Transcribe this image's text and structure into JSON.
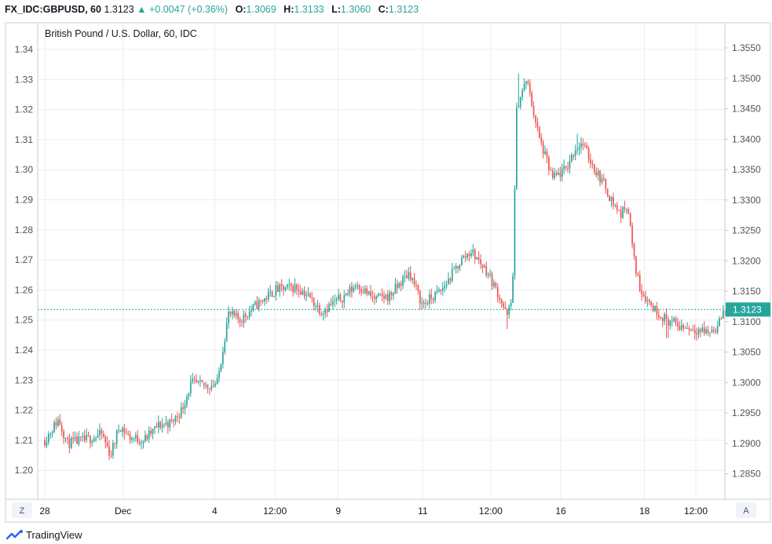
{
  "header": {
    "symbol": "FX_IDC:GBPUSD, 60",
    "last": "1.3123",
    "change": "▲ +0.0047 (+0.36%)",
    "o_label": "O:",
    "o_value": "1.3069",
    "h_label": "H:",
    "h_value": "1.3133",
    "l_label": "L:",
    "l_value": "1.3060",
    "c_label": "C:",
    "c_value": "1.3123"
  },
  "chart_data": {
    "type": "candlestick",
    "title": "British Pound / U.S. Dollar, 60, IDC",
    "left_axis": {
      "range": [
        1.195,
        1.3445
      ],
      "ticks": [
        "1.34",
        "1.33",
        "1.32",
        "1.31",
        "1.30",
        "1.29",
        "1.28",
        "1.27",
        "1.26",
        "1.25",
        "1.24",
        "1.23",
        "1.22",
        "1.21",
        "1.20"
      ]
    },
    "right_axis": {
      "range": [
        1.2819,
        1.3619
      ],
      "ticks": [
        "1.3550",
        "1.3500",
        "1.3450",
        "1.3400",
        "1.3350",
        "1.3300",
        "1.3250",
        "1.3200",
        "1.3150",
        "1.3100",
        "1.3050",
        "1.3000",
        "1.2950",
        "1.2900",
        "1.2850"
      ]
    },
    "x_ticks": [
      {
        "label": "28",
        "pos": 0.0
      },
      {
        "label": "Dec",
        "pos": 0.1202
      },
      {
        "label": "4",
        "pos": 0.2609
      },
      {
        "label": "12:00",
        "pos": 0.3536
      },
      {
        "label": "9",
        "pos": 0.4508
      },
      {
        "label": "11",
        "pos": 0.5806
      },
      {
        "label": "12:00",
        "pos": 0.6849
      },
      {
        "label": "16",
        "pos": 0.7926
      },
      {
        "label": "18",
        "pos": 0.9212
      },
      {
        "label": "12:00",
        "pos": 1.0
      }
    ],
    "last_price": {
      "label": "1.3123",
      "left_value": 1.2535
    },
    "colors": {
      "up": "#26a69a",
      "down": "#ef5350",
      "grid": "#e9ecf1",
      "price_line": "#26a69a"
    },
    "anchors": [
      [
        0.0,
        1.21
      ],
      [
        0.021,
        1.217
      ],
      [
        0.035,
        1.209
      ],
      [
        0.06,
        1.21
      ],
      [
        0.088,
        1.212
      ],
      [
        0.101,
        1.205
      ],
      [
        0.115,
        1.215
      ],
      [
        0.13,
        1.211
      ],
      [
        0.152,
        1.21
      ],
      [
        0.175,
        1.215
      ],
      [
        0.195,
        1.216
      ],
      [
        0.21,
        1.22
      ],
      [
        0.225,
        1.229
      ],
      [
        0.247,
        1.228
      ],
      [
        0.265,
        1.229
      ],
      [
        0.282,
        1.252
      ],
      [
        0.3,
        1.25
      ],
      [
        0.325,
        1.255
      ],
      [
        0.355,
        1.26
      ],
      [
        0.385,
        1.261
      ],
      [
        0.4,
        1.259
      ],
      [
        0.425,
        1.253
      ],
      [
        0.46,
        1.258
      ],
      [
        0.48,
        1.262
      ],
      [
        0.505,
        1.257
      ],
      [
        0.53,
        1.258
      ],
      [
        0.56,
        1.266
      ],
      [
        0.58,
        1.255
      ],
      [
        0.61,
        1.26
      ],
      [
        0.64,
        1.27
      ],
      [
        0.655,
        1.273
      ],
      [
        0.68,
        1.266
      ],
      [
        0.7,
        1.257
      ],
      [
        0.71,
        1.251
      ],
      [
        0.718,
        1.257
      ],
      [
        0.725,
        1.321
      ],
      [
        0.74,
        1.33
      ],
      [
        0.76,
        1.31
      ],
      [
        0.78,
        1.297
      ],
      [
        0.8,
        1.3
      ],
      [
        0.815,
        1.307
      ],
      [
        0.825,
        1.309
      ],
      [
        0.845,
        1.3
      ],
      [
        0.86,
        1.295
      ],
      [
        0.87,
        1.29
      ],
      [
        0.885,
        1.285
      ],
      [
        0.895,
        1.289
      ],
      [
        0.905,
        1.27
      ],
      [
        0.915,
        1.26
      ],
      [
        0.935,
        1.254
      ],
      [
        0.955,
        1.25
      ],
      [
        0.975,
        1.248
      ],
      [
        1.0,
        1.247
      ],
      [
        1.02,
        1.246
      ],
      [
        1.035,
        1.248
      ],
      [
        1.04,
        1.252
      ],
      [
        1.045,
        1.253
      ]
    ],
    "spikes": [
      [
        0.727,
        1.332
      ],
      [
        0.744,
        1.33
      ],
      [
        0.711,
        1.247
      ],
      [
        0.819,
        1.312
      ],
      [
        0.955,
        1.244
      ],
      [
        0.958,
        1.244
      ],
      [
        1.041,
        1.255
      ]
    ],
    "candle_count": 360,
    "seed": 11
  },
  "axis_buttons": {
    "left": "Z",
    "right": "A"
  },
  "footer": {
    "brand": "TradingView"
  }
}
